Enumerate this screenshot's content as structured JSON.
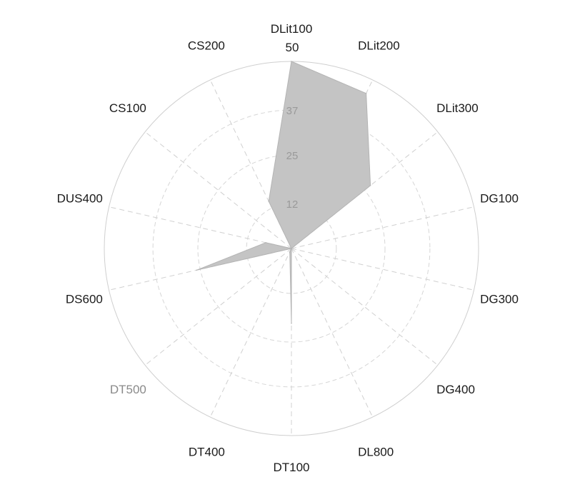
{
  "chart_data": {
    "type": "radar",
    "categories": [
      "DLit100",
      "DLit200",
      "DLit300",
      "DG100",
      "DG300",
      "DG400",
      "DL800",
      "DT100",
      "DT400",
      "DT500",
      "DS600",
      "DUS400",
      "CS100",
      "CS200"
    ],
    "faded_categories": [
      "DT500"
    ],
    "series": [
      {
        "values": [
          50,
          46,
          27,
          0,
          0,
          0,
          0,
          20,
          1,
          0,
          26,
          7,
          0,
          14
        ]
      }
    ],
    "rlim": [
      0,
      50
    ],
    "r_ticks": [
      12,
      25,
      37,
      50
    ],
    "r_tick_labels": [
      "12",
      "25",
      "37",
      "50"
    ],
    "grid": true,
    "colors": {
      "area": "#c4c4c4",
      "grid": "#d0d0d0",
      "text": "#1a1a1a",
      "faded_text": "#8a8a8a"
    }
  }
}
